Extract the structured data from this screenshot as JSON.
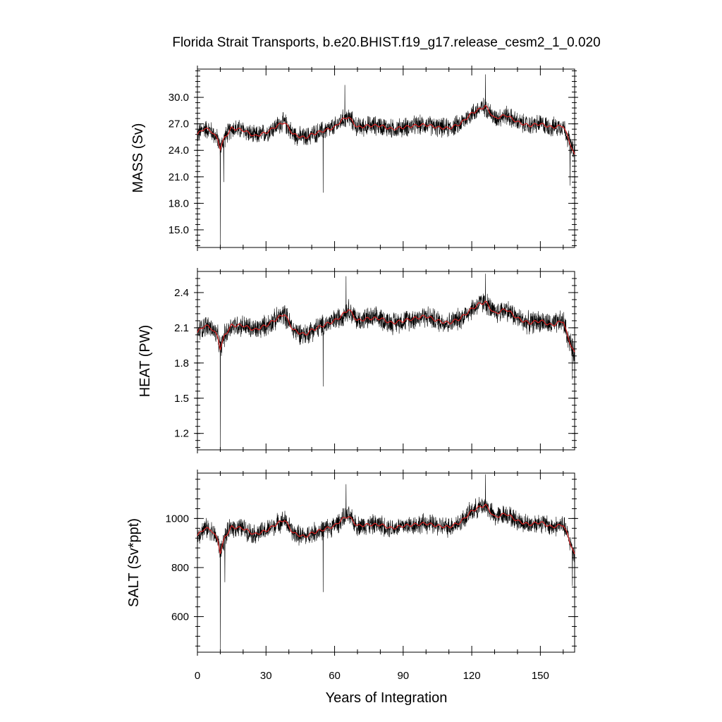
{
  "figure": {
    "title": "Florida Strait Transports, b.e20.BHIST.f19_g17.release_cesm2_1_0.020",
    "xlabel": "Years of Integration",
    "series_colors": {
      "raw": "#000000",
      "smoothed": "#d62020"
    }
  },
  "chart_data": [
    {
      "type": "line",
      "title": "",
      "ylabel": "MASS (Sv)",
      "xlabel": "",
      "xlim": [
        0,
        165
      ],
      "ylim": [
        13.0,
        33.2
      ],
      "xticks": [
        0,
        30,
        60,
        90,
        120,
        150
      ],
      "yticks": [
        15.0,
        18.0,
        21.0,
        24.0,
        27.0,
        30.0
      ],
      "ytick_labels": [
        "15.0",
        "18.0",
        "21.0",
        "24.0",
        "27.0",
        "30.0"
      ],
      "series": [
        {
          "role": "monthly",
          "anchors_x": [
            0,
            3,
            6,
            9,
            10,
            12,
            15,
            20,
            25,
            30,
            35,
            38,
            42,
            47,
            50,
            55,
            60,
            63,
            66,
            70,
            75,
            80,
            85,
            90,
            95,
            100,
            105,
            110,
            115,
            120,
            123,
            126,
            130,
            135,
            140,
            145,
            150,
            155,
            160,
            162,
            165
          ],
          "anchors_y": [
            25.8,
            26.5,
            26.2,
            25.2,
            24.2,
            25.5,
            26.5,
            26.3,
            25.6,
            26.0,
            26.8,
            27.2,
            25.8,
            25.4,
            25.8,
            26.2,
            26.6,
            27.4,
            27.8,
            26.6,
            26.8,
            26.8,
            26.4,
            26.6,
            26.8,
            26.9,
            26.6,
            26.5,
            27.0,
            28.2,
            28.6,
            29.0,
            27.6,
            28.0,
            27.2,
            26.8,
            27.0,
            26.6,
            26.8,
            25.5,
            23.4
          ],
          "noise_amplitude": 1.3,
          "outliers": [
            [
              10,
              13.0
            ],
            [
              11.5,
              20.4
            ],
            [
              55,
              19.2
            ],
            [
              126,
              32.6
            ],
            [
              163,
              20.0
            ],
            [
              64.5,
              31.4
            ]
          ]
        },
        {
          "role": "smoothed",
          "anchors_x": [
            0,
            3,
            6,
            9,
            10,
            12,
            15,
            20,
            25,
            30,
            35,
            38,
            42,
            47,
            50,
            55,
            60,
            63,
            66,
            70,
            75,
            80,
            85,
            90,
            95,
            100,
            105,
            110,
            115,
            120,
            123,
            126,
            130,
            135,
            140,
            145,
            150,
            155,
            160,
            162,
            165
          ],
          "anchors_y": [
            25.8,
            26.5,
            26.2,
            25.2,
            24.2,
            25.5,
            26.5,
            26.3,
            25.6,
            26.0,
            26.8,
            27.2,
            25.8,
            25.4,
            25.8,
            26.2,
            26.6,
            27.4,
            27.8,
            26.6,
            26.8,
            26.8,
            26.4,
            26.6,
            26.8,
            26.9,
            26.6,
            26.5,
            27.0,
            28.2,
            28.6,
            29.0,
            27.6,
            28.0,
            27.2,
            26.8,
            27.0,
            26.6,
            26.8,
            25.5,
            23.4
          ]
        }
      ]
    },
    {
      "type": "line",
      "title": "",
      "ylabel": "HEAT (PW)",
      "xlabel": "",
      "xlim": [
        0,
        165
      ],
      "ylim": [
        1.06,
        2.58
      ],
      "xticks": [
        0,
        30,
        60,
        90,
        120,
        150
      ],
      "yticks": [
        1.2,
        1.5,
        1.8,
        2.1,
        2.4
      ],
      "ytick_labels": [
        "1.2",
        "1.5",
        "1.8",
        "2.1",
        "2.4"
      ],
      "series": [
        {
          "role": "monthly",
          "anchors_x": [
            0,
            3,
            6,
            9,
            10,
            12,
            15,
            20,
            25,
            30,
            35,
            38,
            42,
            47,
            50,
            55,
            60,
            63,
            66,
            70,
            75,
            80,
            85,
            90,
            95,
            100,
            105,
            110,
            115,
            120,
            123,
            126,
            130,
            135,
            140,
            145,
            150,
            155,
            160,
            162,
            165
          ],
          "anchors_y": [
            2.06,
            2.12,
            2.1,
            2.02,
            1.92,
            2.04,
            2.12,
            2.12,
            2.08,
            2.12,
            2.18,
            2.22,
            2.08,
            2.04,
            2.08,
            2.12,
            2.16,
            2.2,
            2.26,
            2.16,
            2.18,
            2.18,
            2.14,
            2.16,
            2.18,
            2.2,
            2.16,
            2.14,
            2.18,
            2.26,
            2.3,
            2.32,
            2.22,
            2.26,
            2.18,
            2.14,
            2.16,
            2.12,
            2.16,
            2.02,
            1.88
          ],
          "noise_amplitude": 0.11,
          "outliers": [
            [
              10,
              1.06
            ],
            [
              55,
              1.6
            ],
            [
              126,
              2.56
            ],
            [
              164,
              1.66
            ],
            [
              65,
              2.54
            ]
          ]
        },
        {
          "role": "smoothed",
          "anchors_x": [
            0,
            3,
            6,
            9,
            10,
            12,
            15,
            20,
            25,
            30,
            35,
            38,
            42,
            47,
            50,
            55,
            60,
            63,
            66,
            70,
            75,
            80,
            85,
            90,
            95,
            100,
            105,
            110,
            115,
            120,
            123,
            126,
            130,
            135,
            140,
            145,
            150,
            155,
            160,
            162,
            165
          ],
          "anchors_y": [
            2.06,
            2.12,
            2.1,
            2.02,
            1.92,
            2.04,
            2.12,
            2.12,
            2.08,
            2.12,
            2.18,
            2.22,
            2.08,
            2.04,
            2.08,
            2.12,
            2.16,
            2.2,
            2.26,
            2.16,
            2.18,
            2.18,
            2.14,
            2.16,
            2.18,
            2.2,
            2.16,
            2.14,
            2.18,
            2.26,
            2.3,
            2.32,
            2.22,
            2.26,
            2.18,
            2.14,
            2.16,
            2.12,
            2.16,
            2.02,
            1.88
          ]
        }
      ]
    },
    {
      "type": "line",
      "title": "",
      "ylabel": "SALT (Sv*ppt)",
      "xlabel": "Years of Integration",
      "xlim": [
        0,
        165
      ],
      "ylim": [
        455,
        1185
      ],
      "xticks": [
        0,
        30,
        60,
        90,
        120,
        150
      ],
      "yticks": [
        600,
        800,
        1000
      ],
      "ytick_labels": [
        "600",
        "800",
        "1000"
      ],
      "series": [
        {
          "role": "monthly",
          "anchors_x": [
            0,
            3,
            6,
            9,
            10,
            12,
            15,
            20,
            25,
            30,
            35,
            38,
            42,
            47,
            50,
            55,
            60,
            63,
            66,
            70,
            75,
            80,
            85,
            90,
            95,
            100,
            105,
            110,
            115,
            120,
            123,
            126,
            130,
            135,
            140,
            145,
            150,
            155,
            160,
            162,
            165
          ],
          "anchors_y": [
            930,
            960,
            955,
            910,
            860,
            925,
            965,
            960,
            935,
            950,
            980,
            995,
            940,
            925,
            940,
            955,
            970,
            995,
            1010,
            970,
            975,
            975,
            960,
            970,
            975,
            980,
            970,
            965,
            985,
            1030,
            1045,
            1055,
            1005,
            1020,
            990,
            975,
            985,
            965,
            975,
            930,
            850
          ],
          "noise_amplitude": 48,
          "outliers": [
            [
              10,
              455
            ],
            [
              12,
              740
            ],
            [
              55,
              700
            ],
            [
              126,
              1180
            ],
            [
              164,
              725
            ],
            [
              65,
              1140
            ]
          ]
        },
        {
          "role": "smoothed",
          "anchors_x": [
            0,
            3,
            6,
            9,
            10,
            12,
            15,
            20,
            25,
            30,
            35,
            38,
            42,
            47,
            50,
            55,
            60,
            63,
            66,
            70,
            75,
            80,
            85,
            90,
            95,
            100,
            105,
            110,
            115,
            120,
            123,
            126,
            130,
            135,
            140,
            145,
            150,
            155,
            160,
            162,
            165
          ],
          "anchors_y": [
            930,
            960,
            955,
            910,
            860,
            925,
            965,
            960,
            935,
            950,
            980,
            995,
            940,
            925,
            940,
            955,
            970,
            995,
            1010,
            970,
            975,
            975,
            960,
            970,
            975,
            980,
            970,
            965,
            985,
            1030,
            1045,
            1055,
            1005,
            1020,
            990,
            975,
            985,
            965,
            975,
            930,
            850
          ]
        }
      ]
    }
  ]
}
